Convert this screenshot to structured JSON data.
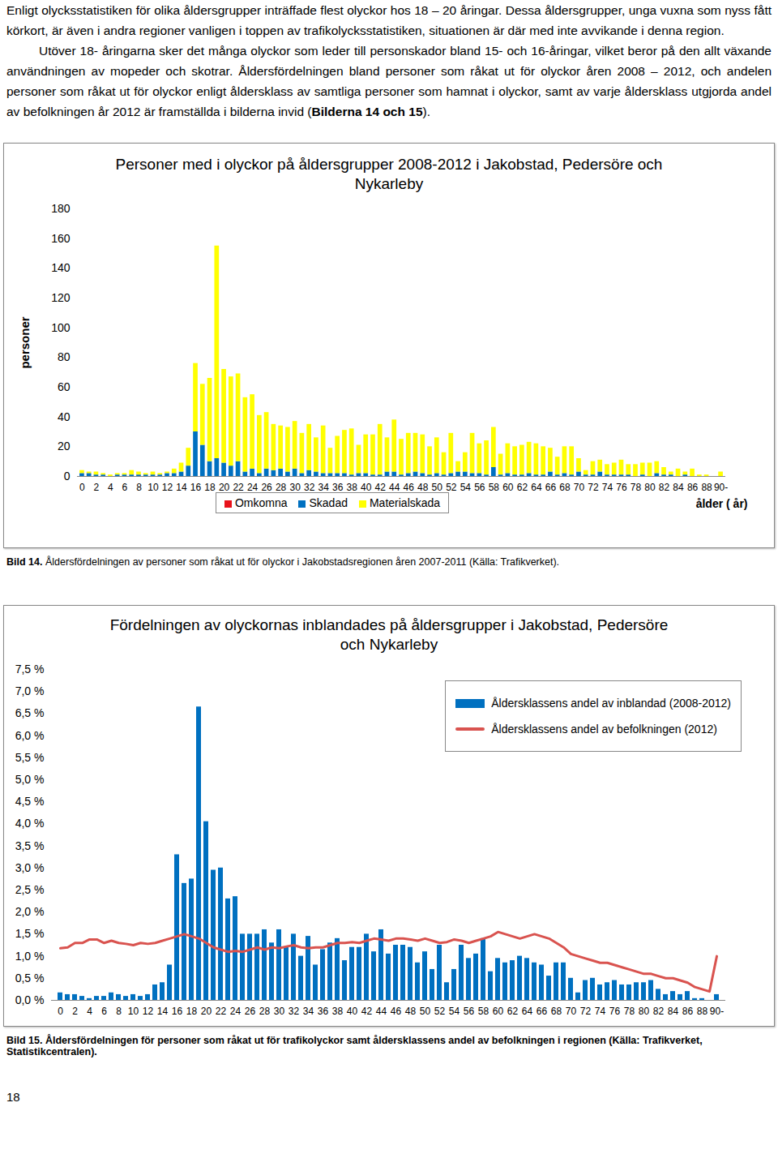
{
  "document": {
    "paragraphs": [
      {
        "parts": [
          {
            "text": "Enligt olycksstatistiken för olika åldersgrupper inträffade flest olyckor hos 18 – 20 åringar. Dessa åldersgrupper, unga vuxna som nyss fått körkort, är även i andra regioner vanligen i toppen av trafikolycksstatistiken, situationen är där med inte avvikande i denna region.",
            "bold": false
          }
        ]
      },
      {
        "parts": [
          {
            "text": "Utöver 18- åringarna sker det många olyckor som leder till personskador bland 15- och 16-åringar, vilket beror på den allt växande användningen av mopeder och skotrar. Åldersfördelningen bland personer som råkat ut för olyckor åren 2008 – 2012, och andelen personer som råkat ut för olyckor enligt åldersklass av samtliga personer som hamnat i olyckor, samt av varje åldersklass utgjorda andel av befolkningen år 2012 är framställda i bilderna invid (",
            "bold": false
          },
          {
            "text": "Bilderna 14 och 15",
            "bold": true
          },
          {
            "text": ").",
            "bold": false
          }
        ]
      }
    ],
    "captions": [
      {
        "label": "Bild 14.",
        "text": "Åldersfördelningen av personer som råkat ut för olyckor i Jakobstadsregionen åren 2007-2011 (Källa: Trafikverket).",
        "bold": false
      },
      {
        "label": "Bild 15.",
        "text": "Åldersfördelningen för personer som råkat ut för trafikolyckor samt åldersklassens andel av befolkningen i regionen (Källa: Trafikverket, Statistikcentralen).",
        "bold": true
      }
    ],
    "page_number": "18"
  },
  "chart_data": [
    {
      "type": "bar",
      "stacked": true,
      "title": "Personer med i olyckor på åldersgrupper 2008-2012 i Jakobstad, Pedersöre och Nykarleby",
      "ylabel": "personer",
      "xlabel": "ålder ( år)",
      "categories": [
        "0",
        null,
        "2",
        null,
        "4",
        null,
        "6",
        null,
        "8",
        null,
        "10",
        null,
        "12",
        null,
        "14",
        null,
        "16",
        null,
        "18",
        null,
        "20",
        null,
        "22",
        null,
        "24",
        null,
        "26",
        null,
        "28",
        null,
        "30",
        null,
        "32",
        null,
        "34",
        null,
        "36",
        null,
        "38",
        null,
        "40",
        null,
        "42",
        null,
        "44",
        null,
        "46",
        null,
        "48",
        null,
        "50",
        null,
        "52",
        null,
        "54",
        null,
        "56",
        null,
        "58",
        null,
        "60",
        null,
        "62",
        null,
        "64",
        null,
        "66",
        null,
        "68",
        null,
        "70",
        null,
        "72",
        null,
        "74",
        null,
        "76",
        null,
        "78",
        null,
        "80",
        null,
        "82",
        null,
        "84",
        null,
        "86",
        null,
        "88",
        null,
        "90-"
      ],
      "series": [
        {
          "name": "Omkomna",
          "color": "#e8121b",
          "values": [
            0,
            0,
            0,
            0,
            0,
            0,
            0,
            0,
            0,
            0,
            0,
            0,
            0,
            0,
            0,
            0,
            0,
            0,
            0,
            0,
            0,
            0,
            0,
            0,
            0,
            0,
            0,
            0,
            0,
            0,
            0,
            0,
            0,
            0,
            0,
            0,
            0,
            0,
            0,
            0,
            0,
            0,
            0,
            0,
            0,
            0,
            0,
            0,
            0,
            0,
            0,
            0,
            0,
            0,
            0,
            0,
            0,
            0,
            0,
            0,
            0,
            0,
            0,
            0,
            0,
            0,
            0,
            0,
            0,
            0,
            0,
            0,
            0,
            0,
            0,
            0,
            0,
            0,
            0,
            0,
            0,
            0,
            0,
            0,
            0,
            0,
            0,
            0,
            0,
            0,
            0
          ]
        },
        {
          "name": "Skadad",
          "color": "#0070c0",
          "values": [
            2,
            2,
            1,
            1,
            0,
            1,
            1,
            1,
            1,
            1,
            1,
            1,
            2,
            2,
            3,
            7,
            30,
            21,
            10,
            12,
            9,
            7,
            10,
            3,
            5,
            2,
            5,
            4,
            5,
            3,
            5,
            2,
            4,
            3,
            2,
            2,
            2,
            2,
            1,
            2,
            2,
            1,
            1,
            3,
            3,
            1,
            2,
            3,
            2,
            1,
            2,
            1,
            2,
            3,
            3,
            2,
            2,
            1,
            6,
            1,
            2,
            1,
            1,
            2,
            1,
            1,
            3,
            1,
            2,
            1,
            3,
            1,
            1,
            3,
            1,
            1,
            1,
            1,
            0,
            1,
            0,
            2,
            1,
            1,
            0,
            1,
            0,
            0,
            0,
            0,
            0
          ]
        },
        {
          "name": "Materialskada",
          "color": "#ffff00",
          "values": [
            2,
            1,
            2,
            1,
            1,
            1,
            1,
            3,
            2,
            1,
            2,
            1,
            1,
            3,
            6,
            12,
            46,
            41,
            56,
            143,
            63,
            60,
            59,
            50,
            50,
            39,
            38,
            31,
            29,
            30,
            32,
            27,
            31,
            23,
            32,
            17,
            25,
            29,
            31,
            19,
            26,
            27,
            34,
            23,
            35,
            24,
            27,
            26,
            26,
            19,
            24,
            15,
            27,
            7,
            13,
            27,
            20,
            23,
            27,
            14,
            20,
            19,
            20,
            21,
            21,
            19,
            16,
            12,
            18,
            19,
            9,
            3,
            9,
            8,
            7,
            8,
            10,
            7,
            8,
            8,
            9,
            8,
            5,
            2,
            5,
            2,
            5,
            1,
            1,
            0,
            3
          ]
        }
      ],
      "ylim": [
        0,
        180
      ],
      "yticks": [
        0,
        20,
        40,
        60,
        80,
        100,
        120,
        140,
        160,
        180
      ],
      "grid": false,
      "legend": "bottom"
    },
    {
      "type": "bar",
      "title": "Fördelningen av olyckornas inblandades på åldersgrupper i Jakobstad, Pedersöre och Nykarleby",
      "categories": [
        "0",
        null,
        "2",
        null,
        "4",
        null,
        "6",
        null,
        "8",
        null,
        "10",
        null,
        "12",
        null,
        "14",
        null,
        "16",
        null,
        "18",
        null,
        "20",
        null,
        "22",
        null,
        "24",
        null,
        "26",
        null,
        "28",
        null,
        "30",
        null,
        "32",
        null,
        "34",
        null,
        "36",
        null,
        "38",
        null,
        "40",
        null,
        "42",
        null,
        "44",
        null,
        "46",
        null,
        "48",
        null,
        "50",
        null,
        "52",
        null,
        "54",
        null,
        "56",
        null,
        "58",
        null,
        "60",
        null,
        "62",
        null,
        "64",
        null,
        "66",
        null,
        "68",
        null,
        "70",
        null,
        "72",
        null,
        "74",
        null,
        "76",
        null,
        "78",
        null,
        "80",
        null,
        "82",
        null,
        "84",
        null,
        "86",
        null,
        "88",
        null,
        "90-"
      ],
      "series": [
        {
          "name": "Åldersklassens andel av inblandad (2008-2012)",
          "type": "bar",
          "color": "#0070c0",
          "values": [
            0.17,
            0.13,
            0.13,
            0.09,
            0.04,
            0.09,
            0.09,
            0.17,
            0.13,
            0.09,
            0.13,
            0.09,
            0.13,
            0.35,
            0.4,
            0.8,
            3.3,
            2.65,
            2.75,
            6.65,
            4.05,
            2.95,
            3.0,
            2.3,
            2.35,
            1.5,
            1.5,
            1.5,
            1.6,
            1.3,
            1.6,
            1.2,
            1.5,
            1.0,
            1.45,
            0.8,
            1.15,
            1.3,
            1.4,
            0.9,
            1.2,
            1.2,
            1.5,
            1.1,
            1.6,
            1.05,
            1.25,
            1.25,
            1.2,
            0.85,
            1.1,
            0.7,
            1.25,
            0.4,
            0.7,
            1.25,
            0.95,
            1.05,
            1.4,
            0.65,
            0.95,
            0.85,
            0.9,
            1.0,
            0.95,
            0.85,
            0.8,
            0.55,
            0.85,
            0.85,
            0.5,
            0.17,
            0.45,
            0.5,
            0.35,
            0.4,
            0.45,
            0.35,
            0.35,
            0.4,
            0.4,
            0.45,
            0.25,
            0.13,
            0.2,
            0.13,
            0.2,
            0.04,
            0.04,
            0,
            0.13
          ]
        },
        {
          "name": "Åldersklassens andel av befolkningen (2012)",
          "type": "line",
          "color": "#d9534f",
          "values": [
            1.18,
            1.2,
            1.3,
            1.3,
            1.38,
            1.38,
            1.3,
            1.35,
            1.3,
            1.28,
            1.25,
            1.3,
            1.28,
            1.3,
            1.35,
            1.4,
            1.45,
            1.5,
            1.45,
            1.4,
            1.3,
            1.2,
            1.15,
            1.1,
            1.12,
            1.1,
            1.15,
            1.2,
            1.15,
            1.2,
            1.18,
            1.22,
            1.25,
            1.2,
            1.18,
            1.2,
            1.2,
            1.25,
            1.3,
            1.3,
            1.32,
            1.3,
            1.35,
            1.4,
            1.38,
            1.35,
            1.4,
            1.4,
            1.38,
            1.35,
            1.4,
            1.35,
            1.3,
            1.32,
            1.38,
            1.35,
            1.3,
            1.35,
            1.4,
            1.45,
            1.55,
            1.5,
            1.45,
            1.4,
            1.45,
            1.5,
            1.45,
            1.4,
            1.3,
            1.2,
            1.05,
            1.0,
            0.95,
            0.9,
            0.85,
            0.85,
            0.8,
            0.75,
            0.7,
            0.65,
            0.6,
            0.6,
            0.55,
            0.5,
            0.5,
            0.45,
            0.4,
            0.3,
            0.25,
            0.2,
            1.0
          ]
        }
      ],
      "ylim": [
        0,
        7.5
      ],
      "yticks": [
        {
          "value": 0,
          "label": "0,0 %"
        },
        {
          "value": 0.5,
          "label": "0,5 %"
        },
        {
          "value": 1,
          "label": "1,0 %"
        },
        {
          "value": 1.5,
          "label": "1,5 %"
        },
        {
          "value": 2,
          "label": "2,0 %"
        },
        {
          "value": 2.5,
          "label": "2,5 %"
        },
        {
          "value": 3,
          "label": "3,0 %"
        },
        {
          "value": 3.5,
          "label": "3,5 %"
        },
        {
          "value": 4,
          "label": "4,0 %"
        },
        {
          "value": 4.5,
          "label": "4,5 %"
        },
        {
          "value": 5,
          "label": "5,0 %"
        },
        {
          "value": 5.5,
          "label": "5,5 %"
        },
        {
          "value": 6,
          "label": "6,0 %"
        },
        {
          "value": 6.5,
          "label": "6,5 %"
        },
        {
          "value": 7,
          "label": "7,0 %"
        },
        {
          "value": 7.5,
          "label": "7,5 %"
        }
      ],
      "grid": false,
      "legend": "top-right"
    }
  ]
}
